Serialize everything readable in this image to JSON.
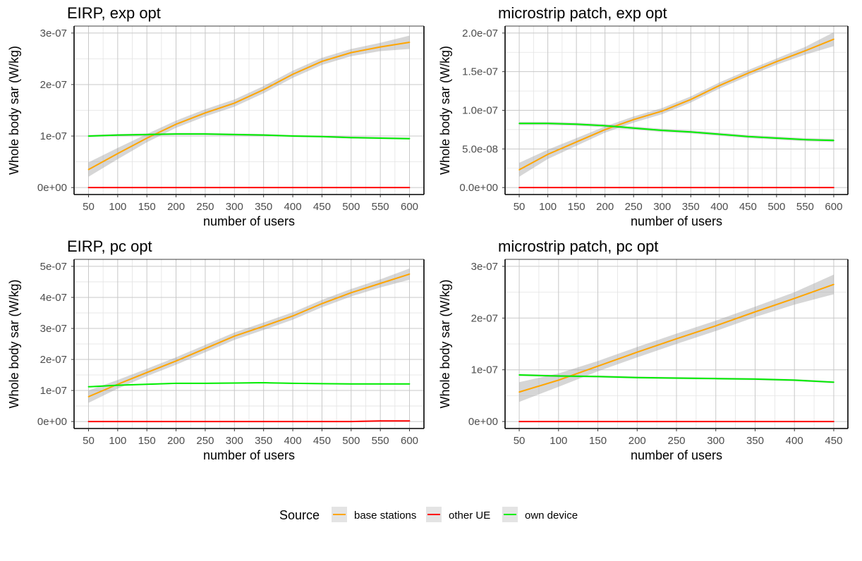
{
  "legend": {
    "title": "Source",
    "items": [
      {
        "label": "base stations",
        "color": "#FFA500"
      },
      {
        "label": "other UE",
        "color": "#FF0000"
      },
      {
        "label": "own device",
        "color": "#00EE00"
      }
    ]
  },
  "chart_data": [
    {
      "type": "line",
      "title": "EIRP, exp opt",
      "xlabel": "number of users",
      "ylabel": "Whole body sar (W/kg)",
      "xlim": [
        50,
        600
      ],
      "ylim": [
        0,
        3e-07
      ],
      "grid": true,
      "x_ticks": [
        50,
        100,
        150,
        200,
        250,
        300,
        350,
        400,
        450,
        500,
        550,
        600
      ],
      "y_ticks": [
        0,
        1e-07,
        2e-07,
        3e-07
      ],
      "y_tick_labels": [
        "0e+00",
        "1e-07",
        "2e-07",
        "3e-07"
      ],
      "x": [
        50,
        100,
        150,
        200,
        250,
        300,
        350,
        400,
        450,
        500,
        550,
        600
      ],
      "series": [
        {
          "name": "base stations",
          "color": "#FFA500",
          "values": [
            3.5e-08,
            6.6e-08,
            9.6e-08,
            1.23e-07,
            1.45e-07,
            1.64e-07,
            1.9e-07,
            2.2e-07,
            2.45e-07,
            2.62e-07,
            2.73e-07,
            2.82e-07
          ],
          "band": [
            1.4e-08,
            1.1e-08,
            8e-09,
            7e-09,
            7e-09,
            7e-09,
            7e-09,
            7e-09,
            7e-09,
            7e-09,
            8e-09,
            1.3e-08
          ]
        },
        {
          "name": "other UE",
          "color": "#FF0000",
          "values": [
            0,
            0,
            0,
            0,
            0,
            0,
            0,
            0,
            0,
            0,
            0,
            0
          ],
          "band": [
            0,
            0,
            0,
            0,
            0,
            0,
            0,
            0,
            0,
            0,
            0,
            0
          ]
        },
        {
          "name": "own device",
          "color": "#00EE00",
          "values": [
            1e-07,
            1.02e-07,
            1.03e-07,
            1.04e-07,
            1.04e-07,
            1.03e-07,
            1.02e-07,
            1e-07,
            9.9e-08,
            9.7e-08,
            9.6e-08,
            9.5e-08
          ],
          "band": [
            2e-09,
            2e-09,
            2e-09,
            2e-09,
            2e-09,
            2e-09,
            2e-09,
            2e-09,
            2e-09,
            2e-09,
            2e-09,
            2e-09
          ]
        }
      ]
    },
    {
      "type": "line",
      "title": "microstrip patch, exp opt",
      "xlabel": "number of users",
      "ylabel": "Whole body sar (W/kg)",
      "xlim": [
        50,
        600
      ],
      "ylim": [
        0,
        2e-07
      ],
      "grid": true,
      "x_ticks": [
        50,
        100,
        150,
        200,
        250,
        300,
        350,
        400,
        450,
        500,
        550,
        600
      ],
      "y_ticks": [
        0,
        5e-08,
        1e-07,
        1.5e-07,
        2e-07
      ],
      "y_tick_labels": [
        "0.0e+00",
        "5.0e-08",
        "1.0e-07",
        "1.5e-07",
        "2.0e-07"
      ],
      "x": [
        50,
        100,
        150,
        200,
        250,
        300,
        350,
        400,
        450,
        500,
        550,
        600
      ],
      "series": [
        {
          "name": "base stations",
          "color": "#FFA500",
          "values": [
            2.3e-08,
            4.3e-08,
            5.9e-08,
            7.5e-08,
            8.8e-08,
            9.9e-08,
            1.14e-07,
            1.32e-07,
            1.48e-07,
            1.63e-07,
            1.77e-07,
            1.92e-07
          ],
          "band": [
            9e-09,
            6e-09,
            5e-09,
            4e-09,
            4e-09,
            4e-09,
            4e-09,
            4e-09,
            4e-09,
            4e-09,
            5e-09,
            9e-09
          ]
        },
        {
          "name": "other UE",
          "color": "#FF0000",
          "values": [
            0,
            0,
            0,
            0,
            0,
            0,
            0,
            0,
            0,
            0,
            0,
            0
          ],
          "band": [
            0,
            0,
            0,
            0,
            0,
            0,
            0,
            0,
            0,
            0,
            0,
            0
          ]
        },
        {
          "name": "own device",
          "color": "#00EE00",
          "values": [
            8.3e-08,
            8.3e-08,
            8.2e-08,
            8e-08,
            7.7e-08,
            7.4e-08,
            7.2e-08,
            6.9e-08,
            6.6e-08,
            6.4e-08,
            6.2e-08,
            6.1e-08
          ],
          "band": [
            2e-09,
            2e-09,
            2e-09,
            2e-09,
            2e-09,
            2e-09,
            2e-09,
            2e-09,
            2e-09,
            2e-09,
            2e-09,
            2e-09
          ]
        }
      ]
    },
    {
      "type": "line",
      "title": "EIRP, pc opt",
      "xlabel": "number of users",
      "ylabel": "Whole body sar (W/kg)",
      "xlim": [
        50,
        600
      ],
      "ylim": [
        0,
        5e-07
      ],
      "grid": true,
      "x_ticks": [
        50,
        100,
        150,
        200,
        250,
        300,
        350,
        400,
        450,
        500,
        550,
        600
      ],
      "y_ticks": [
        0,
        1e-07,
        2e-07,
        3e-07,
        4e-07,
        5e-07
      ],
      "y_tick_labels": [
        "0e+00",
        "1e-07",
        "2e-07",
        "3e-07",
        "4e-07",
        "5e-07"
      ],
      "x": [
        50,
        100,
        150,
        200,
        250,
        300,
        350,
        400,
        450,
        500,
        550,
        600
      ],
      "series": [
        {
          "name": "base stations",
          "color": "#FFA500",
          "values": [
            8e-08,
            1.2e-07,
            1.58e-07,
            1.95e-07,
            2.35e-07,
            2.75e-07,
            3.07e-07,
            3.4e-07,
            3.8e-07,
            4.15e-07,
            4.45e-07,
            4.75e-07
          ],
          "band": [
            2e-08,
            1.4e-08,
            1.2e-08,
            1.2e-08,
            1.2e-08,
            1.2e-08,
            1.2e-08,
            1.2e-08,
            1.2e-08,
            1.2e-08,
            1.3e-08,
            1.8e-08
          ]
        },
        {
          "name": "other UE",
          "color": "#FF0000",
          "values": [
            0,
            0,
            0,
            0,
            0,
            0,
            0,
            0,
            0,
            0,
            2e-09,
            2e-09
          ],
          "band": [
            0,
            0,
            0,
            0,
            0,
            0,
            0,
            0,
            0,
            0,
            0,
            0
          ]
        },
        {
          "name": "own device",
          "color": "#00EE00",
          "values": [
            1.12e-07,
            1.17e-07,
            1.2e-07,
            1.23e-07,
            1.23e-07,
            1.24e-07,
            1.25e-07,
            1.23e-07,
            1.22e-07,
            1.21e-07,
            1.21e-07,
            1.21e-07
          ],
          "band": [
            2e-09,
            2e-09,
            2e-09,
            2e-09,
            2e-09,
            2e-09,
            2e-09,
            2e-09,
            2e-09,
            2e-09,
            2e-09,
            2e-09
          ]
        }
      ]
    },
    {
      "type": "line",
      "title": "microstrip patch, pc opt",
      "xlabel": "number of users",
      "ylabel": "Whole body sar (W/kg)",
      "xlim": [
        50,
        450
      ],
      "ylim": [
        0,
        3e-07
      ],
      "grid": true,
      "x_ticks": [
        50,
        100,
        150,
        200,
        250,
        300,
        350,
        400,
        450
      ],
      "y_ticks": [
        0,
        1e-07,
        2e-07,
        3e-07
      ],
      "y_tick_labels": [
        "0e+00",
        "1e-07",
        "2e-07",
        "3e-07"
      ],
      "x": [
        50,
        100,
        150,
        200,
        250,
        300,
        350,
        400,
        450
      ],
      "series": [
        {
          "name": "base stations",
          "color": "#FFA500",
          "values": [
            5.7e-08,
            8e-08,
            1.07e-07,
            1.34e-07,
            1.6e-07,
            1.85e-07,
            2.12e-07,
            2.38e-07,
            2.65e-07
          ],
          "band": [
            1.9e-08,
            1.3e-08,
            1e-08,
            1e-08,
            1e-08,
            1e-08,
            1e-08,
            1.2e-08,
            1.9e-08
          ]
        },
        {
          "name": "other UE",
          "color": "#FF0000",
          "values": [
            0,
            0,
            0,
            0,
            0,
            0,
            0,
            0,
            0
          ],
          "band": [
            0,
            0,
            0,
            0,
            0,
            0,
            0,
            0,
            0
          ]
        },
        {
          "name": "own device",
          "color": "#00EE00",
          "values": [
            9e-08,
            8.8e-08,
            8.7e-08,
            8.5e-08,
            8.4e-08,
            8.3e-08,
            8.2e-08,
            8e-08,
            7.6e-08
          ],
          "band": [
            2e-09,
            2e-09,
            2e-09,
            2e-09,
            2e-09,
            2e-09,
            2e-09,
            2e-09,
            2e-09
          ]
        }
      ]
    }
  ]
}
